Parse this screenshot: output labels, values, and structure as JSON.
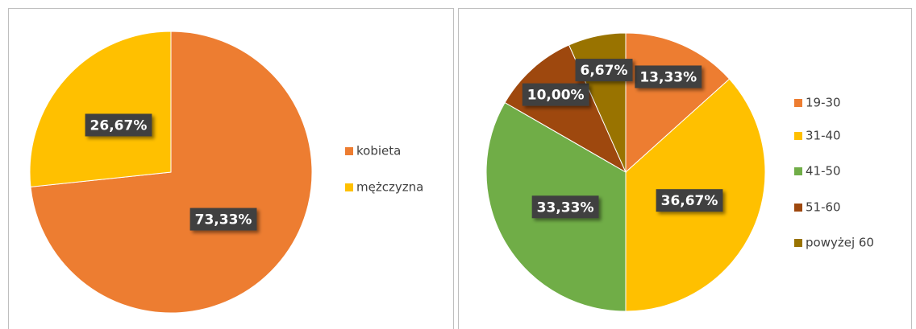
{
  "chart_data": [
    {
      "type": "pie",
      "categories": [
        "kobieta",
        "mężczyzna"
      ],
      "values": [
        73.33,
        26.67
      ],
      "value_labels": [
        "73,33%",
        "26,67%"
      ],
      "colors": [
        "#ED7D31",
        "#FFC000"
      ],
      "legend": "right"
    },
    {
      "type": "pie",
      "categories": [
        "19-30",
        "31-40",
        "41-50",
        "51-60",
        "powyżej 60"
      ],
      "values": [
        13.33,
        36.67,
        33.33,
        10.0,
        6.67
      ],
      "value_labels": [
        "13,33%",
        "36,67%",
        "33,33%",
        "10,00%",
        "6,67%"
      ],
      "colors": [
        "#ED7D31",
        "#FFC000",
        "#70AD47",
        "#9E480E",
        "#997300"
      ],
      "legend": "right"
    }
  ]
}
